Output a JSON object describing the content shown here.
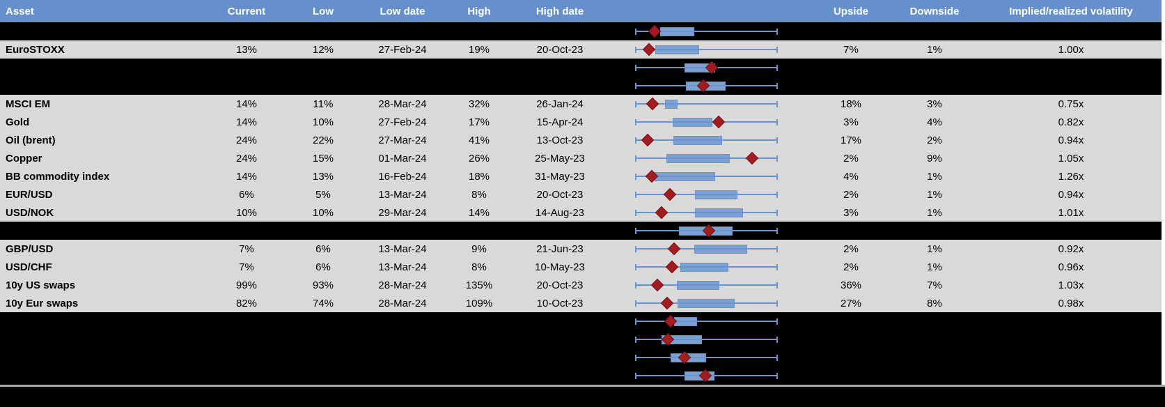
{
  "colors": {
    "header_bg": "#6590cc",
    "row_bg": "#d9d9d9",
    "spacer_bg": "#000000",
    "line_blue": "#6b94ce",
    "box_blue": "#7aa0d4",
    "diamond_red": "#a11d22",
    "diamond_edge": "#7a1013",
    "divider_gray": "#a6a6a6"
  },
  "header": {
    "asset": "Asset",
    "current": "Current",
    "low": "Low",
    "low_date": "Low date",
    "high": "High",
    "high_date": "High date",
    "chart": "",
    "upside": "Upside",
    "downside": "Downside",
    "vol": "Implied/realized volatility"
  },
  "rows": [
    {
      "type": "spacer",
      "asset": "",
      "current": "",
      "low": "",
      "low_date": "",
      "high": "",
      "high_date": "",
      "upside": "",
      "downside": "",
      "vol": "",
      "box": {
        "b0": 17.6,
        "b1": 41.5,
        "d": 13.7
      }
    },
    {
      "type": "data",
      "asset": "EuroSTOXX",
      "current": "13%",
      "low": "12%",
      "low_date": "27-Feb-24",
      "high": "19%",
      "high_date": "20-Oct-23",
      "upside": "7%",
      "downside": "1%",
      "vol": "1.00x",
      "box": {
        "b0": 14.0,
        "b1": 44.9,
        "d": 9.6
      }
    },
    {
      "type": "spacer",
      "asset": "",
      "current": "",
      "low": "",
      "low_date": "",
      "high": "",
      "high_date": "",
      "upside": "",
      "downside": "",
      "vol": "",
      "box": {
        "b0": 34.6,
        "b1": 56.0,
        "d": 53.5
      }
    },
    {
      "type": "spacer",
      "asset": "",
      "current": "",
      "low": "",
      "low_date": "",
      "high": "",
      "high_date": "",
      "upside": "",
      "downside": "",
      "vol": "",
      "box": {
        "b0": 35.6,
        "b1": 63.3,
        "d": 47.8
      }
    },
    {
      "type": "data",
      "asset": "MSCI EM",
      "current": "14%",
      "low": "11%",
      "low_date": "28-Mar-24",
      "high": "32%",
      "high_date": "26-Jan-24",
      "upside": "18%",
      "downside": "3%",
      "vol": "0.75x",
      "box": {
        "b0": 21.0,
        "b1": 29.6,
        "d": 12.0
      }
    },
    {
      "type": "data",
      "asset": "Gold",
      "current": "14%",
      "low": "10%",
      "low_date": "27-Feb-24",
      "high": "17%",
      "high_date": "15-Apr-24",
      "upside": "3%",
      "downside": "4%",
      "vol": "0.82x",
      "box": {
        "b0": 26.3,
        "b1": 54.3,
        "d": 58.4
      }
    },
    {
      "type": "data",
      "asset": "Oil (brent)",
      "current": "24%",
      "low": "22%",
      "low_date": "27-Mar-24",
      "high": "41%",
      "high_date": "13-Oct-23",
      "upside": "17%",
      "downside": "2%",
      "vol": "0.94x",
      "box": {
        "b0": 26.7,
        "b1": 60.8,
        "d": 8.8
      }
    },
    {
      "type": "data",
      "asset": "Copper",
      "current": "24%",
      "low": "15%",
      "low_date": "01-Mar-24",
      "high": "26%",
      "high_date": "25-May-23",
      "upside": "2%",
      "downside": "9%",
      "vol": "1.05x",
      "box": {
        "b0": 21.8,
        "b1": 66.5,
        "d": 82.0
      }
    },
    {
      "type": "data",
      "asset": "BB commodity index",
      "current": "14%",
      "low": "13%",
      "low_date": "16-Feb-24",
      "high": "18%",
      "high_date": "31-May-23",
      "upside": "4%",
      "downside": "1%",
      "vol": "1.26x",
      "box": {
        "b0": 13.7,
        "b1": 56.0,
        "d": 11.7
      }
    },
    {
      "type": "data",
      "asset": "EUR/USD",
      "current": "6%",
      "low": "5%",
      "low_date": "13-Mar-24",
      "high": "8%",
      "high_date": "20-Oct-23",
      "upside": "2%",
      "downside": "1%",
      "vol": "0.94x",
      "box": {
        "b0": 42.1,
        "b1": 71.7,
        "d": 24.2
      }
    },
    {
      "type": "data",
      "asset": "USD/NOK",
      "current": "10%",
      "low": "10%",
      "low_date": "29-Mar-24",
      "high": "14%",
      "high_date": "14-Aug-23",
      "upside": "3%",
      "downside": "1%",
      "vol": "1.01x",
      "box": {
        "b0": 42.1,
        "b1": 75.6,
        "d": 18.5
      }
    },
    {
      "type": "spacer",
      "asset": "",
      "current": "",
      "low": "",
      "low_date": "",
      "high": "",
      "high_date": "",
      "upside": "",
      "downside": "",
      "vol": "",
      "box": {
        "b0": 30.7,
        "b1": 68.3,
        "d": 51.8
      }
    },
    {
      "type": "data",
      "asset": "GBP/USD",
      "current": "7%",
      "low": "6%",
      "low_date": "13-Mar-24",
      "high": "9%",
      "high_date": "21-Jun-23",
      "upside": "2%",
      "downside": "1%",
      "vol": "0.92x",
      "box": {
        "b0": 41.3,
        "b1": 78.5,
        "d": 27.5
      }
    },
    {
      "type": "data",
      "asset": "USD/CHF",
      "current": "7%",
      "low": "6%",
      "low_date": "13-Mar-24",
      "high": "8%",
      "high_date": "10-May-23",
      "upside": "2%",
      "downside": "1%",
      "vol": "0.96x",
      "box": {
        "b0": 31.6,
        "b1": 65.4,
        "d": 25.9
      }
    },
    {
      "type": "data",
      "asset": "10y US swaps",
      "current": "99%",
      "low": "93%",
      "low_date": "28-Mar-24",
      "high": "135%",
      "high_date": "20-Oct-23",
      "upside": "36%",
      "downside": "7%",
      "vol": "1.03x",
      "box": {
        "b0": 29.1,
        "b1": 59.2,
        "d": 15.8
      }
    },
    {
      "type": "data",
      "asset": "10y Eur swaps",
      "current": "82%",
      "low": "74%",
      "low_date": "28-Mar-24",
      "high": "109%",
      "high_date": "10-Oct-23",
      "upside": "27%",
      "downside": "8%",
      "vol": "0.98x",
      "box": {
        "b0": 29.9,
        "b1": 69.8,
        "d": 22.3
      }
    },
    {
      "type": "spacer",
      "asset": "",
      "current": "",
      "low": "",
      "low_date": "",
      "high": "",
      "high_date": "",
      "upside": "",
      "downside": "",
      "vol": "",
      "box": {
        "b0": 27.2,
        "b1": 43.4,
        "d": 24.7
      }
    },
    {
      "type": "spacer",
      "asset": "",
      "current": "",
      "low": "",
      "low_date": "",
      "high": "",
      "high_date": "",
      "upside": "",
      "downside": "",
      "vol": "",
      "box": {
        "b0": 18.5,
        "b1": 46.7,
        "d": 23.1
      }
    },
    {
      "type": "spacer",
      "asset": "",
      "current": "",
      "low": "",
      "low_date": "",
      "high": "",
      "high_date": "",
      "upside": "",
      "downside": "",
      "vol": "",
      "box": {
        "b0": 24.7,
        "b1": 49.9,
        "d": 34.8
      }
    },
    {
      "type": "spacer",
      "asset": "",
      "current": "",
      "low": "",
      "low_date": "",
      "high": "",
      "high_date": "",
      "upside": "",
      "downside": "",
      "vol": "",
      "box": {
        "b0": 34.8,
        "b1": 55.6,
        "d": 49.1
      }
    }
  ]
}
